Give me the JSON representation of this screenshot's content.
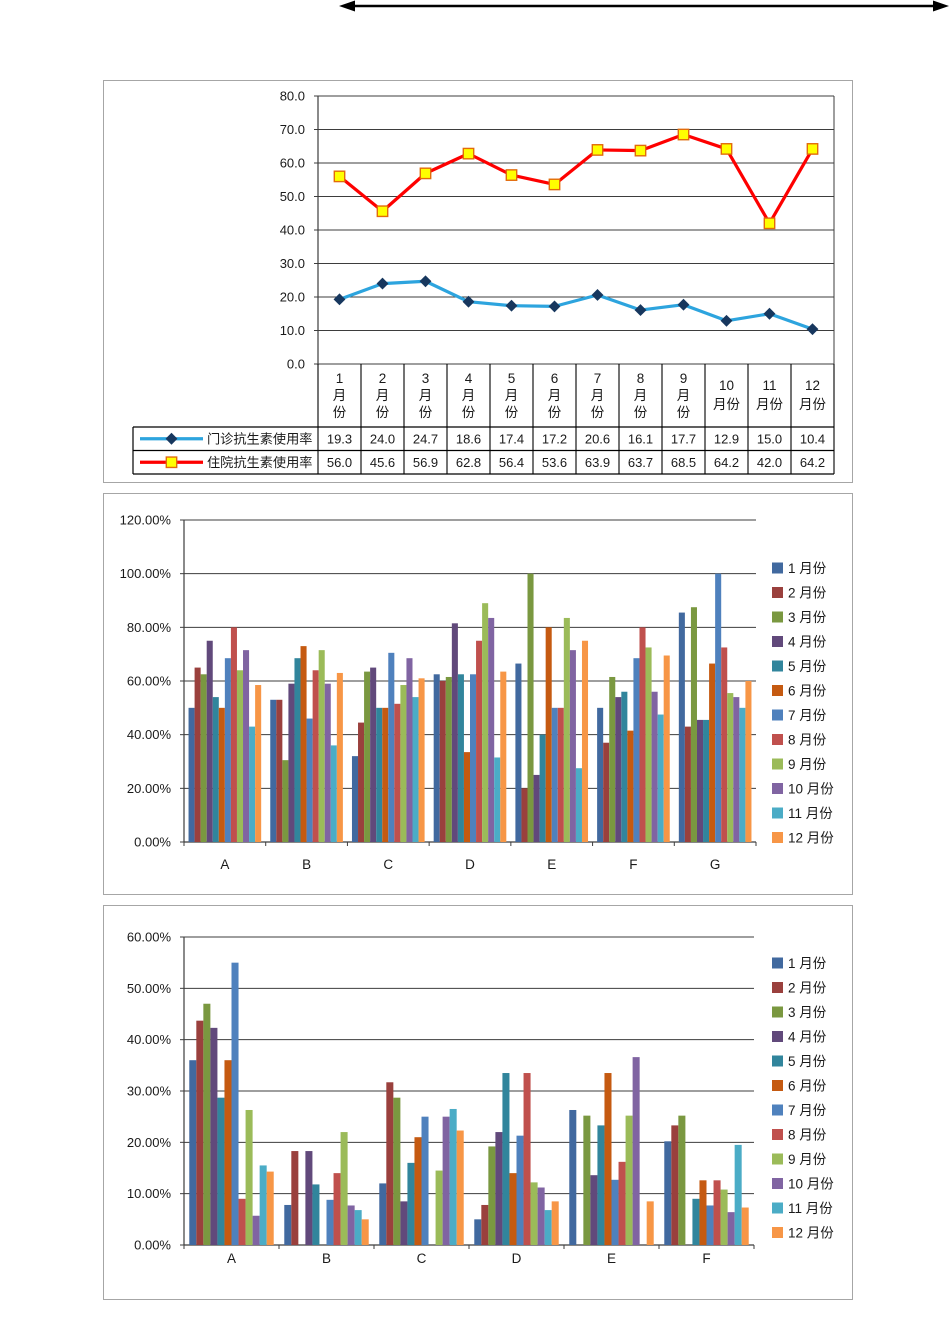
{
  "page": {
    "background": "#ffffff"
  },
  "decorations": {
    "top_arrow": {
      "shape": "double-headed-horizontal-arrow",
      "color": "#000000"
    }
  },
  "chart_data": [
    {
      "type": "line",
      "title": "",
      "categories": [
        "1月份",
        "2月份",
        "3月份",
        "4月份",
        "5月份",
        "6月份",
        "7月份",
        "8月份",
        "9月份",
        "10月份",
        "11月份",
        "12月份"
      ],
      "ylim": [
        0,
        80
      ],
      "ytick_step": 10,
      "ytick_labels": [
        "0.0",
        "10.0",
        "20.0",
        "30.0",
        "40.0",
        "50.0",
        "60.0",
        "70.0",
        "80.0"
      ],
      "grid": true,
      "legend_position": "data-table-left",
      "data_table": true,
      "series": [
        {
          "name": "门诊抗生素使用率",
          "line_color": "#2DA4DE",
          "marker": "diamond",
          "marker_fill": "#17375E",
          "values": [
            19.3,
            24.0,
            24.7,
            18.6,
            17.4,
            17.2,
            20.6,
            16.1,
            17.7,
            12.9,
            15.0,
            10.4
          ]
        },
        {
          "name": "住院抗生素使用率",
          "line_color": "#FE0000",
          "marker": "square",
          "marker_fill": "#FFFF00",
          "marker_border": "#E26B0A",
          "values": [
            56.0,
            45.6,
            56.9,
            62.8,
            56.4,
            53.6,
            63.9,
            63.7,
            68.5,
            64.2,
            42.0,
            64.2
          ]
        }
      ]
    },
    {
      "type": "bar",
      "title": "",
      "categories": [
        "A",
        "B",
        "C",
        "D",
        "E",
        "F",
        "G"
      ],
      "ylim": [
        0,
        120
      ],
      "ytick_step": 20,
      "ytick_labels": [
        "0.00%",
        "20.00%",
        "40.00%",
        "60.00%",
        "80.00%",
        "100.00%",
        "120.00%"
      ],
      "grid": true,
      "legend_position": "right",
      "series": [
        {
          "name": "1 月份",
          "color": "#41699F",
          "values": [
            50,
            53,
            32,
            62.5,
            66.5,
            50,
            85.5
          ]
        },
        {
          "name": "2 月份",
          "color": "#9A403D",
          "values": [
            65,
            53,
            44.5,
            60,
            20,
            37,
            43
          ]
        },
        {
          "name": "3 月份",
          "color": "#7A9840",
          "values": [
            62.5,
            30.5,
            63.5,
            61.5,
            100,
            61.5,
            87.5
          ]
        },
        {
          "name": "4 月份",
          "color": "#61497B",
          "values": [
            75,
            59,
            65,
            81.5,
            25,
            54,
            45.5
          ]
        },
        {
          "name": "5 月份",
          "color": "#31859C",
          "values": [
            54,
            68.5,
            50,
            62.5,
            40,
            56,
            45.5
          ]
        },
        {
          "name": "6 月份",
          "color": "#C55A11",
          "values": [
            50,
            73,
            50,
            33.5,
            80,
            41.5,
            66.5
          ]
        },
        {
          "name": "7 月份",
          "color": "#4F81BD",
          "values": [
            68.5,
            46,
            70.5,
            62.5,
            50,
            68.5,
            100
          ]
        },
        {
          "name": "8 月份",
          "color": "#C0504D",
          "values": [
            80,
            64,
            51.5,
            75,
            50,
            80,
            72.5
          ]
        },
        {
          "name": "9 月份",
          "color": "#9BBB59",
          "values": [
            64,
            71.5,
            58.5,
            89,
            83.5,
            72.5,
            55.5
          ]
        },
        {
          "name": "10 月份",
          "color": "#8064A2",
          "values": [
            71.5,
            59,
            68.5,
            83.5,
            71.5,
            56,
            54
          ]
        },
        {
          "name": "11 月份",
          "color": "#4BACC6",
          "values": [
            43,
            36,
            54,
            31.5,
            27.5,
            47.5,
            50
          ]
        },
        {
          "name": "12 月份",
          "color": "#F79646",
          "values": [
            58.5,
            63,
            61,
            63.5,
            75,
            69.5,
            60
          ]
        }
      ]
    },
    {
      "type": "bar",
      "title": "",
      "categories": [
        "A",
        "B",
        "C",
        "D",
        "E",
        "F"
      ],
      "ylim": [
        0,
        60
      ],
      "ytick_step": 10,
      "ytick_labels": [
        "0.00%",
        "10.00%",
        "20.00%",
        "30.00%",
        "40.00%",
        "50.00%",
        "60.00%"
      ],
      "grid": true,
      "legend_position": "right",
      "series": [
        {
          "name": "1 月份",
          "color": "#41699F",
          "values": [
            36,
            7.8,
            12,
            5,
            26.3,
            20.2
          ]
        },
        {
          "name": "2 月份",
          "color": "#9A403D",
          "values": [
            43.7,
            18.3,
            31.7,
            7.8,
            0,
            23.3
          ]
        },
        {
          "name": "3 月份",
          "color": "#7A9840",
          "values": [
            47,
            0,
            28.7,
            19.2,
            25.2,
            25.2
          ]
        },
        {
          "name": "4 月份",
          "color": "#61497B",
          "values": [
            42.3,
            18.3,
            8.5,
            22,
            13.6,
            0
          ]
        },
        {
          "name": "5 月份",
          "color": "#31859C",
          "values": [
            28.7,
            11.8,
            16,
            33.5,
            23.3,
            9
          ]
        },
        {
          "name": "6 月份",
          "color": "#C55A11",
          "values": [
            36,
            0,
            21,
            14,
            33.5,
            12.6
          ]
        },
        {
          "name": "7 月份",
          "color": "#4F81BD",
          "values": [
            55,
            8.8,
            25,
            21.3,
            12.7,
            7.7
          ]
        },
        {
          "name": "8 月份",
          "color": "#C0504D",
          "values": [
            9,
            14,
            0,
            33.5,
            16.2,
            12.6
          ]
        },
        {
          "name": "9 月份",
          "color": "#9BBB59",
          "values": [
            26.3,
            22,
            14.5,
            12.2,
            25.2,
            10.8
          ]
        },
        {
          "name": "10 月份",
          "color": "#8064A2",
          "values": [
            5.7,
            7.7,
            25,
            11.2,
            36.6,
            6.4
          ]
        },
        {
          "name": "11 月份",
          "color": "#4BACC6",
          "values": [
            15.5,
            6.8,
            26.5,
            6.8,
            0,
            19.5
          ]
        },
        {
          "name": "12 月份",
          "color": "#F79646",
          "values": [
            14.3,
            5,
            22.3,
            8.5,
            8.5,
            7.3
          ]
        }
      ]
    }
  ]
}
